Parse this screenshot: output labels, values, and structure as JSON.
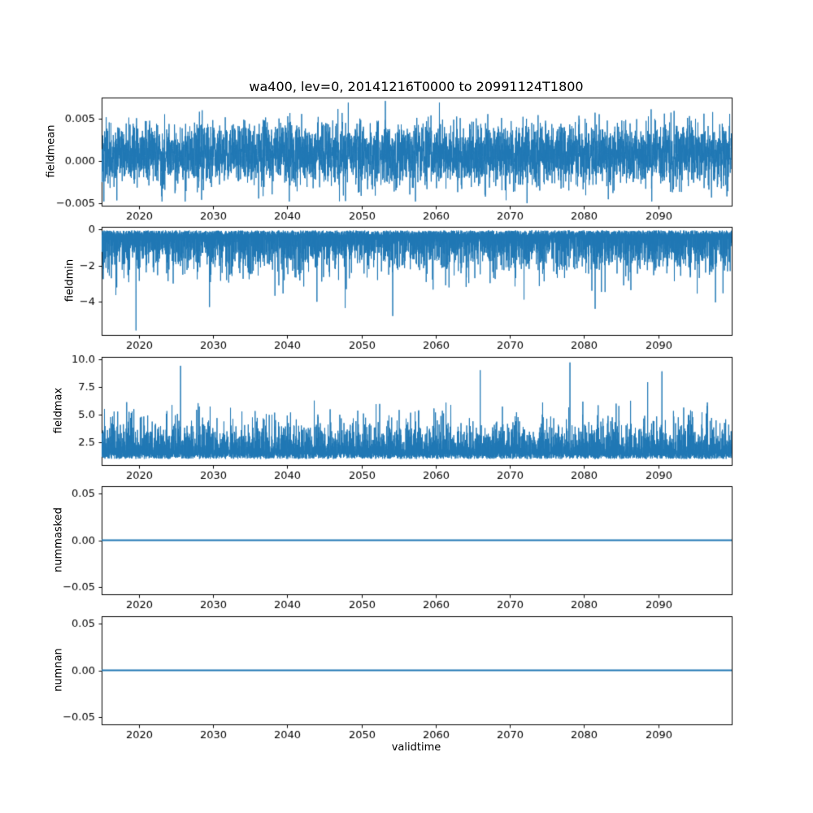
{
  "figure": {
    "title": "wa400, lev=0, 20141216T0000 to 20991124T1800",
    "xlabel": "validtime",
    "background": "#ffffff",
    "line_color": "#1f77b4",
    "text_color": "#000000"
  },
  "chart_data": [
    {
      "type": "line",
      "title": "",
      "ylabel": "fieldmean",
      "xlim": [
        2014.96,
        2099.9
      ],
      "xticks": [
        2020,
        2030,
        2040,
        2050,
        2060,
        2070,
        2080,
        2090
      ],
      "xtick_labels": [
        "2020",
        "2030",
        "2040",
        "2050",
        "2060",
        "2070",
        "2080",
        "2090"
      ],
      "ylim": [
        -0.0053,
        0.0075
      ],
      "yticks": [
        0.005,
        0.0,
        -0.005
      ],
      "ytick_labels": [
        "0.005",
        "0.000",
        "−0.005"
      ],
      "grid": false,
      "legend": "none",
      "series": {
        "name": "fieldmean",
        "kind": "noise",
        "points": 5000,
        "center": 0.0008,
        "sigma": 0.0018,
        "clip": [
          -0.0048,
          0.0069
        ],
        "extremes": [
          {
            "x": 2053.2,
            "v": 0.0071
          },
          {
            "x": 2072.3,
            "v": -0.005
          }
        ]
      }
    },
    {
      "type": "line",
      "title": "",
      "ylabel": "fieldmin",
      "xlim": [
        2014.96,
        2099.9
      ],
      "xticks": [
        2020,
        2030,
        2040,
        2050,
        2060,
        2070,
        2080,
        2090
      ],
      "xtick_labels": [
        "2020",
        "2030",
        "2040",
        "2050",
        "2060",
        "2070",
        "2080",
        "2090"
      ],
      "ylim": [
        -5.85,
        0.15
      ],
      "yticks": [
        0,
        -2,
        -4
      ],
      "ytick_labels": [
        "0",
        "−2",
        "−4"
      ],
      "grid": false,
      "legend": "none",
      "series": {
        "name": "fieldmin",
        "kind": "spikes-down",
        "points": 4200,
        "top": -0.05,
        "top_jitter": 0.3,
        "depth_base": 0.35,
        "depth_sigma": 1.05,
        "spike_prob": 0.02,
        "spike_extra": 1.6,
        "min": -5.6,
        "extremes": [
          {
            "x": 2019.6,
            "v": -5.6
          },
          {
            "x": 2054.2,
            "v": -4.8
          },
          {
            "x": 2047.8,
            "v": -4.35
          },
          {
            "x": 2081.5,
            "v": -4.4
          },
          {
            "x": 2029.5,
            "v": -4.3
          }
        ]
      }
    },
    {
      "type": "line",
      "title": "",
      "ylabel": "fieldmax",
      "xlim": [
        2014.96,
        2099.9
      ],
      "xticks": [
        2020,
        2030,
        2040,
        2050,
        2060,
        2070,
        2080,
        2090
      ],
      "xtick_labels": [
        "2020",
        "2030",
        "2040",
        "2050",
        "2060",
        "2070",
        "2080",
        "2090"
      ],
      "ylim": [
        0.45,
        10.2
      ],
      "yticks": [
        2.5,
        5.0,
        7.5,
        10.0
      ],
      "ytick_labels": [
        "2.5",
        "5.0",
        "7.5",
        "10.0"
      ],
      "grid": false,
      "legend": "none",
      "series": {
        "name": "fieldmax",
        "kind": "spikes-up",
        "points": 4200,
        "bottom": 1.0,
        "bottom_jitter": 0.55,
        "height_base": 1.4,
        "height_sigma": 1.55,
        "spike_prob": 0.02,
        "spike_extra": 1.8,
        "max": 9.7,
        "extremes": [
          {
            "x": 2025.6,
            "v": 9.4
          },
          {
            "x": 2078.1,
            "v": 9.7
          },
          {
            "x": 2066.0,
            "v": 9.0
          },
          {
            "x": 2090.5,
            "v": 8.9
          }
        ]
      }
    },
    {
      "type": "line",
      "title": "",
      "ylabel": "nummasked",
      "xlim": [
        2014.96,
        2099.9
      ],
      "xticks": [
        2020,
        2030,
        2040,
        2050,
        2060,
        2070,
        2080,
        2090
      ],
      "xtick_labels": [
        "2020",
        "2030",
        "2040",
        "2050",
        "2060",
        "2070",
        "2080",
        "2090"
      ],
      "ylim": [
        -0.0575,
        0.0575
      ],
      "yticks": [
        0.05,
        0.0,
        -0.05
      ],
      "ytick_labels": [
        "0.05",
        "0.00",
        "−0.05"
      ],
      "grid": false,
      "legend": "none",
      "series": {
        "name": "nummasked",
        "kind": "constant",
        "value": 0.0
      }
    },
    {
      "type": "line",
      "title": "",
      "ylabel": "numnan",
      "xlabel": "validtime",
      "xlim": [
        2014.96,
        2099.9
      ],
      "xticks": [
        2020,
        2030,
        2040,
        2050,
        2060,
        2070,
        2080,
        2090
      ],
      "xtick_labels": [
        "2020",
        "2030",
        "2040",
        "2050",
        "2060",
        "2070",
        "2080",
        "2090"
      ],
      "ylim": [
        -0.0575,
        0.0575
      ],
      "yticks": [
        0.05,
        0.0,
        -0.05
      ],
      "ytick_labels": [
        "0.05",
        "0.00",
        "−0.05"
      ],
      "grid": false,
      "legend": "none",
      "series": {
        "name": "numnan",
        "kind": "constant",
        "value": 0.0
      }
    }
  ]
}
